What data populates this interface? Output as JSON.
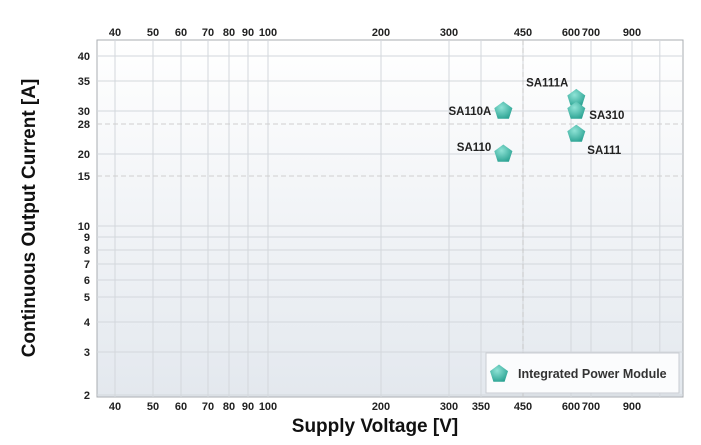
{
  "chart_data": {
    "type": "scatter",
    "title": "",
    "xlabel": "Supply Voltage [V]",
    "ylabel": "Continuous Output Current [A]",
    "x_scale": "log",
    "y_scale": "log",
    "xlim": [
      33,
      1300
    ],
    "ylim": [
      2,
      45
    ],
    "x_ticks": [
      40,
      50,
      60,
      70,
      80,
      90,
      100,
      200,
      300,
      350,
      450,
      600,
      700,
      900
    ],
    "x_ticks_top": [
      40,
      50,
      60,
      70,
      80,
      90,
      100,
      200,
      300,
      450,
      600,
      700,
      900
    ],
    "y_ticks": [
      40,
      35,
      30,
      28,
      20,
      15,
      10,
      9,
      8,
      7,
      6,
      5,
      4,
      3,
      2
    ],
    "grid": true,
    "legend_position": "bottom-right",
    "series": [
      {
        "name": "Integrated Power Module",
        "color": "#3bb5a5",
        "marker": "pentagon",
        "points": [
          {
            "label": "SA110A",
            "x": 400,
            "y": 30
          },
          {
            "label": "SA110",
            "x": 400,
            "y": 20
          },
          {
            "label": "SA111A",
            "x": 625,
            "y": 32
          },
          {
            "label": "SA310",
            "x": 625,
            "y": 30
          },
          {
            "label": "SA111",
            "x": 625,
            "y": 25
          }
        ]
      }
    ]
  }
}
